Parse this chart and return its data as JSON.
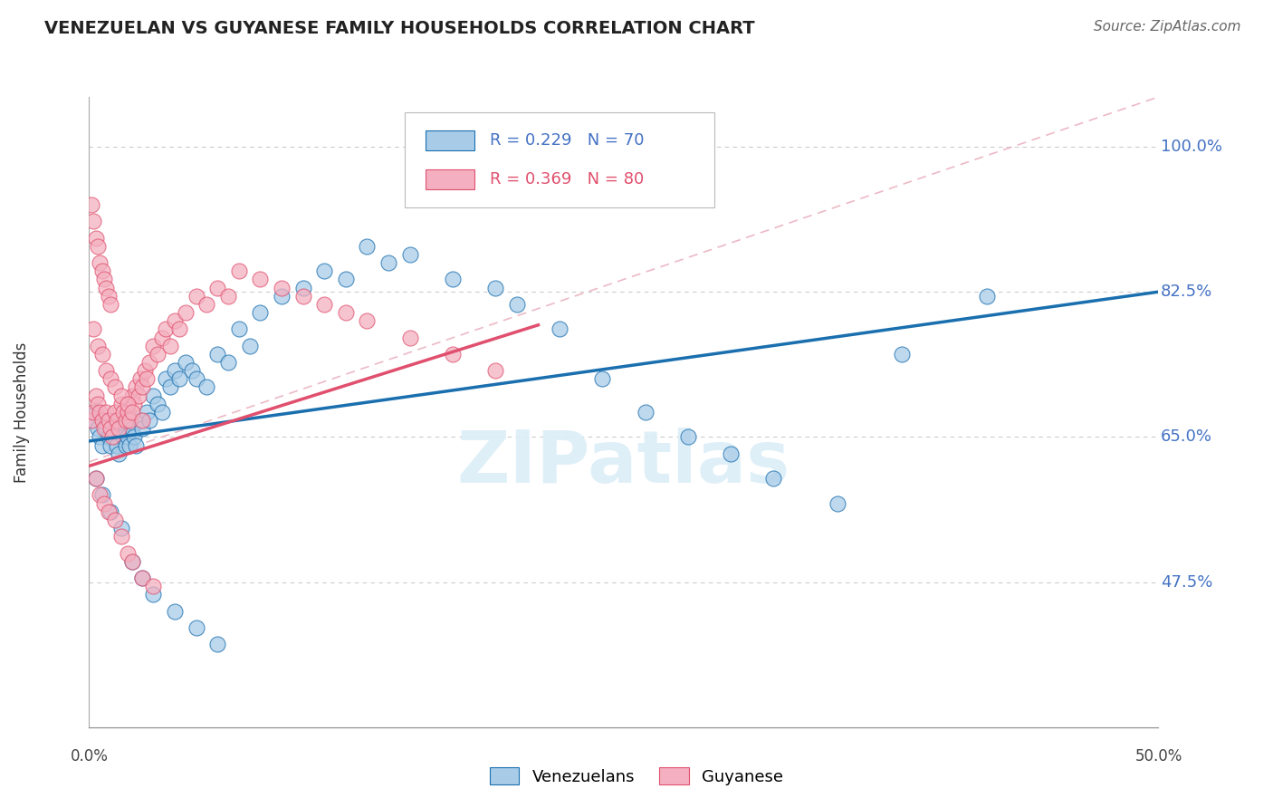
{
  "title": "VENEZUELAN VS GUYANESE FAMILY HOUSEHOLDS CORRELATION CHART",
  "source": "Source: ZipAtlas.com",
  "ylabel": "Family Households",
  "yticks": [
    0.475,
    0.65,
    0.825,
    1.0
  ],
  "ytick_labels": [
    "47.5%",
    "65.0%",
    "82.5%",
    "100.0%"
  ],
  "xlim": [
    0.0,
    0.5
  ],
  "ylim": [
    0.3,
    1.06
  ],
  "blue_label": "Venezuelans",
  "pink_label": "Guyanese",
  "legend_r_blue": "R = 0.229",
  "legend_n_blue": "N = 70",
  "legend_r_pink": "R = 0.369",
  "legend_n_pink": "N = 80",
  "blue_color": "#a8cce8",
  "pink_color": "#f4b0c0",
  "trend_blue_color": "#1a6faf",
  "trend_pink_color": "#e0506e",
  "background_color": "#ffffff",
  "blue_x": [
    0.002,
    0.003,
    0.004,
    0.005,
    0.006,
    0.007,
    0.008,
    0.009,
    0.01,
    0.011,
    0.012,
    0.013,
    0.014,
    0.015,
    0.016,
    0.017,
    0.018,
    0.019,
    0.02,
    0.021,
    0.022,
    0.024,
    0.025,
    0.027,
    0.028,
    0.03,
    0.032,
    0.034,
    0.036,
    0.038,
    0.04,
    0.042,
    0.045,
    0.048,
    0.05,
    0.055,
    0.06,
    0.065,
    0.07,
    0.075,
    0.08,
    0.09,
    0.1,
    0.11,
    0.12,
    0.13,
    0.14,
    0.15,
    0.17,
    0.19,
    0.2,
    0.22,
    0.24,
    0.26,
    0.28,
    0.3,
    0.32,
    0.35,
    0.38,
    0.42,
    0.003,
    0.006,
    0.01,
    0.015,
    0.02,
    0.025,
    0.03,
    0.04,
    0.05,
    0.06
  ],
  "blue_y": [
    0.67,
    0.68,
    0.66,
    0.65,
    0.64,
    0.67,
    0.66,
    0.65,
    0.64,
    0.66,
    0.65,
    0.64,
    0.63,
    0.66,
    0.65,
    0.64,
    0.65,
    0.64,
    0.66,
    0.65,
    0.64,
    0.67,
    0.66,
    0.68,
    0.67,
    0.7,
    0.69,
    0.68,
    0.72,
    0.71,
    0.73,
    0.72,
    0.74,
    0.73,
    0.72,
    0.71,
    0.75,
    0.74,
    0.78,
    0.76,
    0.8,
    0.82,
    0.83,
    0.85,
    0.84,
    0.88,
    0.86,
    0.87,
    0.84,
    0.83,
    0.81,
    0.78,
    0.72,
    0.68,
    0.65,
    0.63,
    0.6,
    0.57,
    0.75,
    0.82,
    0.6,
    0.58,
    0.56,
    0.54,
    0.5,
    0.48,
    0.46,
    0.44,
    0.42,
    0.4
  ],
  "pink_x": [
    0.001,
    0.002,
    0.003,
    0.004,
    0.005,
    0.006,
    0.007,
    0.008,
    0.009,
    0.01,
    0.011,
    0.012,
    0.013,
    0.014,
    0.015,
    0.016,
    0.017,
    0.018,
    0.019,
    0.02,
    0.021,
    0.022,
    0.023,
    0.024,
    0.025,
    0.026,
    0.027,
    0.028,
    0.03,
    0.032,
    0.034,
    0.036,
    0.038,
    0.04,
    0.042,
    0.045,
    0.05,
    0.055,
    0.06,
    0.065,
    0.07,
    0.08,
    0.09,
    0.1,
    0.11,
    0.12,
    0.13,
    0.15,
    0.17,
    0.19,
    0.003,
    0.005,
    0.007,
    0.009,
    0.012,
    0.015,
    0.018,
    0.02,
    0.025,
    0.03,
    0.002,
    0.004,
    0.006,
    0.008,
    0.01,
    0.012,
    0.015,
    0.018,
    0.02,
    0.025,
    0.001,
    0.002,
    0.003,
    0.004,
    0.005,
    0.006,
    0.007,
    0.008,
    0.009,
    0.01
  ],
  "pink_y": [
    0.67,
    0.68,
    0.7,
    0.69,
    0.68,
    0.67,
    0.66,
    0.68,
    0.67,
    0.66,
    0.65,
    0.68,
    0.67,
    0.66,
    0.69,
    0.68,
    0.67,
    0.68,
    0.67,
    0.7,
    0.69,
    0.71,
    0.7,
    0.72,
    0.71,
    0.73,
    0.72,
    0.74,
    0.76,
    0.75,
    0.77,
    0.78,
    0.76,
    0.79,
    0.78,
    0.8,
    0.82,
    0.81,
    0.83,
    0.82,
    0.85,
    0.84,
    0.83,
    0.82,
    0.81,
    0.8,
    0.79,
    0.77,
    0.75,
    0.73,
    0.6,
    0.58,
    0.57,
    0.56,
    0.55,
    0.53,
    0.51,
    0.5,
    0.48,
    0.47,
    0.78,
    0.76,
    0.75,
    0.73,
    0.72,
    0.71,
    0.7,
    0.69,
    0.68,
    0.67,
    0.93,
    0.91,
    0.89,
    0.88,
    0.86,
    0.85,
    0.84,
    0.83,
    0.82,
    0.81
  ]
}
